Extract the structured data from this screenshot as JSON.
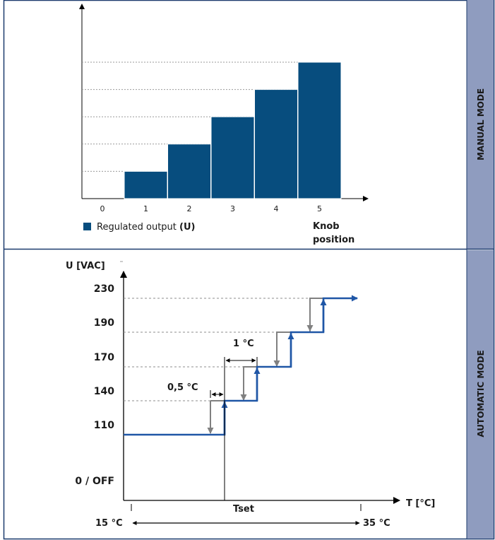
{
  "sections": {
    "manual_label": "MANUAL MODE",
    "automatic_label": "AUTOMATIC MODE"
  },
  "colors": {
    "frame": "#1c3b6e",
    "side_band": "#8f9cbf",
    "bar_fill": "#074d7e",
    "step_blue": "#1f56a6",
    "step_gray": "#808080",
    "guide": "#8c8c8c"
  },
  "chart_data": [
    {
      "type": "bar",
      "title": "",
      "xlabel": "Knob position",
      "xlabel_lines": [
        "Knob",
        "position"
      ],
      "ylabel": "",
      "categories": [
        "0",
        "1",
        "2",
        "3",
        "4",
        "5"
      ],
      "series": [
        {
          "name": "Regulated output (U)",
          "values": [
            0,
            1,
            2,
            3,
            4,
            5
          ]
        }
      ],
      "legend": {
        "text": "Regulated output ",
        "bold": "(U)",
        "position": "bottom-left"
      },
      "ylim": [
        0,
        6
      ],
      "grid": "dotted horizontal at bar levels"
    },
    {
      "type": "line",
      "ylabel": "U [VAC]",
      "xlabel": "T",
      "xunit": "[°C]",
      "y_ticks": [
        "230",
        "190",
        "170",
        "140",
        "110",
        "0 / OFF"
      ],
      "x_labels": {
        "min": "15 °C",
        "max": "35 °C",
        "set": "Tset"
      },
      "series": [
        {
          "name": "",
          "steps": [
            {
              "from": 0,
              "to": 1,
              "value": "110"
            },
            {
              "from": 1,
              "to": 2,
              "value": "140"
            },
            {
              "from": 2,
              "to": 3,
              "value": "170"
            },
            {
              "from": 3,
              "to": 4,
              "value": "190"
            },
            {
              "from": 4,
              "to": 5,
              "value": "230"
            }
          ]
        }
      ],
      "annotations": {
        "hysteresis": "0,5 °C",
        "step_width": "1 °C"
      }
    }
  ]
}
